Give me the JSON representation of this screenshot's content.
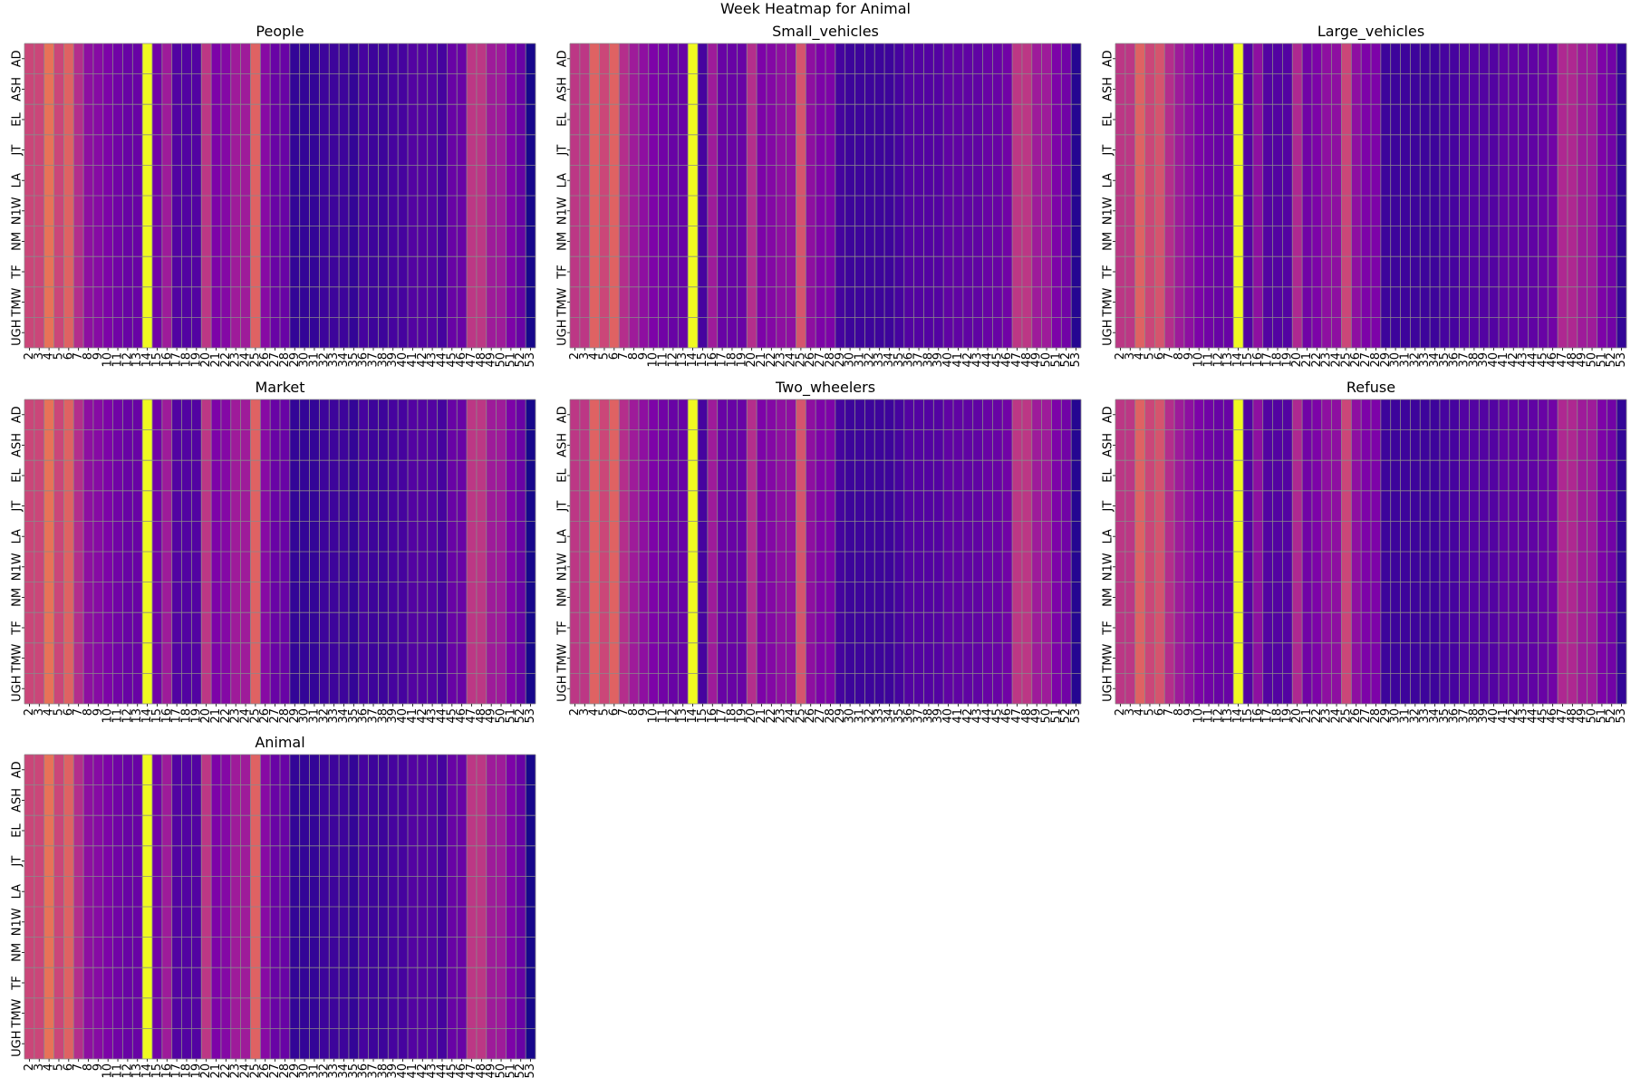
{
  "figure": {
    "suptitle": "Week Heatmap for Animal"
  },
  "colors": {
    "cmap": "plasma",
    "grid_line": "#8a8a8a",
    "background": "#ffffff"
  },
  "chart_data": [
    {
      "type": "heatmap",
      "title": "People",
      "x": [
        2,
        3,
        4,
        5,
        6,
        7,
        8,
        9,
        10,
        11,
        12,
        13,
        14,
        15,
        16,
        17,
        18,
        19,
        20,
        21,
        22,
        23,
        24,
        25,
        26,
        27,
        28,
        29,
        30,
        31,
        32,
        33,
        34,
        35,
        36,
        37,
        38,
        39,
        40,
        41,
        42,
        43,
        44,
        45,
        46,
        47,
        48,
        49,
        50,
        51,
        52,
        53
      ],
      "y": [
        "AD",
        "ASH",
        "EL",
        "JT",
        "LA",
        "N1W",
        "NM",
        "TF",
        "TMW",
        "UGH"
      ],
      "week_intensity": [
        0.5,
        0.5,
        0.65,
        0.5,
        0.6,
        0.42,
        0.3,
        0.28,
        0.25,
        0.22,
        0.2,
        0.2,
        1.0,
        0.22,
        0.35,
        0.15,
        0.15,
        0.15,
        0.45,
        0.25,
        0.27,
        0.35,
        0.35,
        0.6,
        0.28,
        0.2,
        0.2,
        0.08,
        0.08,
        0.08,
        0.1,
        0.1,
        0.1,
        0.08,
        0.12,
        0.1,
        0.1,
        0.12,
        0.12,
        0.15,
        0.15,
        0.15,
        0.12,
        0.2,
        0.2,
        0.45,
        0.45,
        0.35,
        0.35,
        0.25,
        0.2,
        0.02
      ],
      "grid": true
    },
    {
      "type": "heatmap",
      "title": "Small_vehicles",
      "x": [
        2,
        3,
        4,
        5,
        6,
        7,
        8,
        9,
        10,
        11,
        12,
        13,
        14,
        15,
        16,
        17,
        18,
        19,
        20,
        21,
        22,
        23,
        24,
        25,
        26,
        27,
        28,
        29,
        30,
        31,
        32,
        33,
        34,
        35,
        36,
        37,
        38,
        39,
        40,
        41,
        42,
        43,
        44,
        45,
        46,
        47,
        48,
        49,
        50,
        51,
        52,
        53
      ],
      "y": [
        "AD",
        "ASH",
        "EL",
        "JT",
        "LA",
        "N1W",
        "NM",
        "TF",
        "TMW",
        "UGH"
      ],
      "week_intensity": [
        0.45,
        0.45,
        0.6,
        0.5,
        0.6,
        0.42,
        0.35,
        0.3,
        0.25,
        0.22,
        0.2,
        0.2,
        1.0,
        0.12,
        0.35,
        0.2,
        0.2,
        0.2,
        0.42,
        0.25,
        0.27,
        0.3,
        0.3,
        0.55,
        0.3,
        0.25,
        0.25,
        0.12,
        0.1,
        0.1,
        0.1,
        0.1,
        0.1,
        0.12,
        0.15,
        0.15,
        0.15,
        0.15,
        0.18,
        0.18,
        0.18,
        0.18,
        0.2,
        0.2,
        0.22,
        0.45,
        0.45,
        0.35,
        0.35,
        0.25,
        0.22,
        0.05
      ],
      "grid": true
    },
    {
      "type": "heatmap",
      "title": "Large_vehicles",
      "x": [
        2,
        3,
        4,
        5,
        6,
        7,
        8,
        9,
        10,
        11,
        12,
        13,
        14,
        15,
        16,
        17,
        18,
        19,
        20,
        21,
        22,
        23,
        24,
        25,
        26,
        27,
        28,
        29,
        30,
        31,
        32,
        33,
        34,
        35,
        36,
        37,
        38,
        39,
        40,
        41,
        42,
        43,
        44,
        45,
        46,
        47,
        48,
        49,
        50,
        51,
        52,
        53
      ],
      "y": [
        "AD",
        "ASH",
        "EL",
        "JT",
        "LA",
        "N1W",
        "NM",
        "TF",
        "TMW",
        "UGH"
      ],
      "week_intensity": [
        0.45,
        0.45,
        0.6,
        0.5,
        0.55,
        0.42,
        0.35,
        0.3,
        0.25,
        0.22,
        0.2,
        0.2,
        1.0,
        0.15,
        0.3,
        0.15,
        0.15,
        0.15,
        0.4,
        0.22,
        0.25,
        0.3,
        0.3,
        0.5,
        0.3,
        0.25,
        0.25,
        0.1,
        0.1,
        0.1,
        0.1,
        0.1,
        0.1,
        0.12,
        0.12,
        0.15,
        0.15,
        0.15,
        0.15,
        0.18,
        0.18,
        0.18,
        0.18,
        0.2,
        0.22,
        0.4,
        0.4,
        0.35,
        0.35,
        0.25,
        0.22,
        0.08
      ],
      "grid": true
    },
    {
      "type": "heatmap",
      "title": "Market",
      "x": [
        2,
        3,
        4,
        5,
        6,
        7,
        8,
        9,
        10,
        11,
        12,
        13,
        14,
        15,
        16,
        17,
        18,
        19,
        20,
        21,
        22,
        23,
        24,
        25,
        26,
        27,
        28,
        29,
        30,
        31,
        32,
        33,
        34,
        35,
        36,
        37,
        38,
        39,
        40,
        41,
        42,
        43,
        44,
        45,
        46,
        47,
        48,
        49,
        50,
        51,
        52,
        53
      ],
      "y": [
        "AD",
        "ASH",
        "EL",
        "JT",
        "LA",
        "N1W",
        "NM",
        "TF",
        "TMW",
        "UGH"
      ],
      "week_intensity": [
        0.5,
        0.5,
        0.65,
        0.5,
        0.6,
        0.42,
        0.3,
        0.28,
        0.25,
        0.22,
        0.2,
        0.2,
        1.0,
        0.22,
        0.35,
        0.15,
        0.15,
        0.15,
        0.45,
        0.25,
        0.27,
        0.35,
        0.35,
        0.6,
        0.28,
        0.2,
        0.2,
        0.08,
        0.08,
        0.08,
        0.1,
        0.1,
        0.1,
        0.08,
        0.12,
        0.1,
        0.1,
        0.12,
        0.12,
        0.15,
        0.15,
        0.15,
        0.12,
        0.2,
        0.2,
        0.45,
        0.45,
        0.35,
        0.35,
        0.25,
        0.2,
        0.02
      ],
      "grid": true
    },
    {
      "type": "heatmap",
      "title": "Two_wheelers",
      "x": [
        2,
        3,
        4,
        5,
        6,
        7,
        8,
        9,
        10,
        11,
        12,
        13,
        14,
        15,
        16,
        17,
        18,
        19,
        20,
        21,
        22,
        23,
        24,
        25,
        26,
        27,
        28,
        29,
        30,
        31,
        32,
        33,
        34,
        35,
        36,
        37,
        38,
        39,
        40,
        41,
        42,
        43,
        44,
        45,
        46,
        47,
        48,
        49,
        50,
        51,
        52,
        53
      ],
      "y": [
        "AD",
        "ASH",
        "EL",
        "JT",
        "LA",
        "N1W",
        "NM",
        "TF",
        "TMW",
        "UGH"
      ],
      "week_intensity": [
        0.45,
        0.45,
        0.6,
        0.5,
        0.6,
        0.42,
        0.35,
        0.3,
        0.25,
        0.22,
        0.2,
        0.2,
        1.0,
        0.12,
        0.35,
        0.2,
        0.2,
        0.2,
        0.42,
        0.25,
        0.27,
        0.3,
        0.3,
        0.55,
        0.3,
        0.25,
        0.25,
        0.12,
        0.1,
        0.1,
        0.1,
        0.1,
        0.1,
        0.12,
        0.15,
        0.15,
        0.15,
        0.15,
        0.18,
        0.18,
        0.18,
        0.18,
        0.2,
        0.2,
        0.22,
        0.45,
        0.45,
        0.35,
        0.35,
        0.25,
        0.22,
        0.05
      ],
      "grid": true
    },
    {
      "type": "heatmap",
      "title": "Refuse",
      "x": [
        2,
        3,
        4,
        5,
        6,
        7,
        8,
        9,
        10,
        11,
        12,
        13,
        14,
        15,
        16,
        17,
        18,
        19,
        20,
        21,
        22,
        23,
        24,
        25,
        26,
        27,
        28,
        29,
        30,
        31,
        32,
        33,
        34,
        35,
        36,
        37,
        38,
        39,
        40,
        41,
        42,
        43,
        44,
        45,
        46,
        47,
        48,
        49,
        50,
        51,
        52,
        53
      ],
      "y": [
        "AD",
        "ASH",
        "EL",
        "JT",
        "LA",
        "N1W",
        "NM",
        "TF",
        "TMW",
        "UGH"
      ],
      "week_intensity": [
        0.45,
        0.45,
        0.6,
        0.5,
        0.55,
        0.42,
        0.35,
        0.3,
        0.25,
        0.22,
        0.2,
        0.2,
        1.0,
        0.15,
        0.3,
        0.15,
        0.15,
        0.15,
        0.4,
        0.22,
        0.25,
        0.3,
        0.3,
        0.5,
        0.3,
        0.25,
        0.25,
        0.1,
        0.1,
        0.1,
        0.1,
        0.1,
        0.1,
        0.12,
        0.12,
        0.15,
        0.15,
        0.15,
        0.15,
        0.18,
        0.18,
        0.18,
        0.18,
        0.2,
        0.22,
        0.4,
        0.4,
        0.35,
        0.35,
        0.25,
        0.22,
        0.08
      ],
      "grid": true
    },
    {
      "type": "heatmap",
      "title": "Animal",
      "x": [
        2,
        3,
        4,
        5,
        6,
        7,
        8,
        9,
        10,
        11,
        12,
        13,
        14,
        15,
        16,
        17,
        18,
        19,
        20,
        21,
        22,
        23,
        24,
        25,
        26,
        27,
        28,
        29,
        30,
        31,
        32,
        33,
        34,
        35,
        36,
        37,
        38,
        39,
        40,
        41,
        42,
        43,
        44,
        45,
        46,
        47,
        48,
        49,
        50,
        51,
        52,
        53
      ],
      "y": [
        "AD",
        "ASH",
        "EL",
        "JT",
        "LA",
        "N1W",
        "NM",
        "TF",
        "TMW",
        "UGH"
      ],
      "week_intensity": [
        0.5,
        0.5,
        0.65,
        0.5,
        0.6,
        0.42,
        0.3,
        0.28,
        0.25,
        0.22,
        0.2,
        0.2,
        1.0,
        0.22,
        0.35,
        0.15,
        0.15,
        0.15,
        0.45,
        0.25,
        0.27,
        0.35,
        0.35,
        0.6,
        0.28,
        0.2,
        0.2,
        0.08,
        0.08,
        0.08,
        0.1,
        0.1,
        0.1,
        0.08,
        0.12,
        0.1,
        0.1,
        0.12,
        0.12,
        0.15,
        0.15,
        0.15,
        0.12,
        0.2,
        0.2,
        0.45,
        0.45,
        0.35,
        0.35,
        0.25,
        0.2,
        0.02
      ],
      "grid": true
    }
  ]
}
